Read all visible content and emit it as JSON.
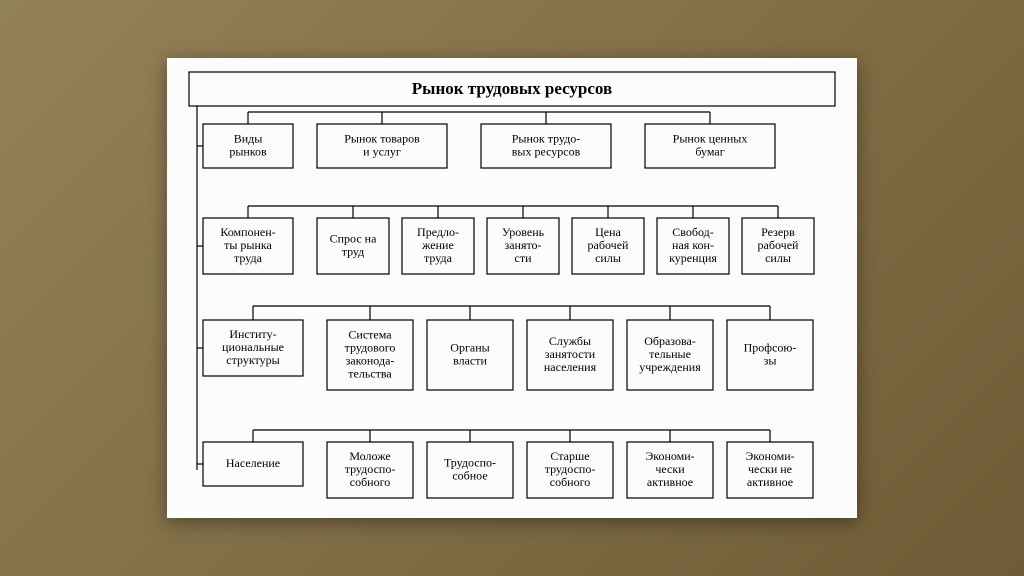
{
  "type": "hierarchy-diagram",
  "background_gradient": [
    "#938258",
    "#6f5c36"
  ],
  "sheet_color": "#fbfcfb",
  "border_color": "#000000",
  "title": "Рынок трудовых ресурсов",
  "title_fontsize": 17,
  "label_fontsize": 12,
  "rows": [
    {
      "category": [
        "Виды",
        "рынков"
      ],
      "children": [
        [
          "Рынок товаров",
          "и услуг"
        ],
        [
          "Рынок трудо-",
          "вых ресурсов"
        ],
        [
          "Рынок ценных",
          "бумаг"
        ]
      ]
    },
    {
      "category": [
        "Компонен-",
        "ты рынка",
        "труда"
      ],
      "children": [
        [
          "Спрос на",
          "труд"
        ],
        [
          "Предло-",
          "жение",
          "труда"
        ],
        [
          "Уровень",
          "занято-",
          "сти"
        ],
        [
          "Цена",
          "рабочей",
          "силы"
        ],
        [
          "Свобод-",
          "ная кон-",
          "куренция"
        ],
        [
          "Резерв",
          "рабочей",
          "силы"
        ]
      ]
    },
    {
      "category": [
        "Инститy-",
        "циональные",
        "структуры"
      ],
      "children": [
        [
          "Система",
          "трудового",
          "законода-",
          "тельства"
        ],
        [
          "Органы",
          "власти"
        ],
        [
          "Службы",
          "занятости",
          "населения"
        ],
        [
          "Образова-",
          "тельные",
          "учреждения"
        ],
        [
          "Профсою-",
          "зы"
        ]
      ]
    },
    {
      "category": [
        "Население"
      ],
      "children": [
        [
          "Моложе",
          "трудоспо-",
          "собного"
        ],
        [
          "Трудоспо-",
          "собное"
        ],
        [
          "Старше",
          "трудоспо-",
          "собного"
        ],
        [
          "Экономи-",
          "чески",
          "активное"
        ],
        [
          "Экономи-",
          "чески не",
          "активное"
        ]
      ]
    }
  ]
}
